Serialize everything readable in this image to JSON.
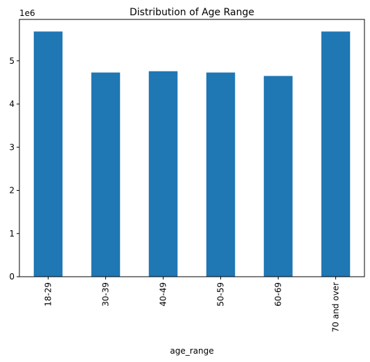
{
  "chart_data": {
    "type": "bar",
    "title": "Distribution of Age Range",
    "xlabel": "age_range",
    "ylabel": "",
    "scale_label": "1e6",
    "categories": [
      "18-29",
      "30-39",
      "40-49",
      "50-59",
      "60-69",
      "70 and over"
    ],
    "values": [
      5680000,
      4730000,
      4760000,
      4730000,
      4650000,
      5680000
    ],
    "ylim": [
      0,
      5960000
    ],
    "yticks": [
      0,
      1000000,
      2000000,
      3000000,
      4000000,
      5000000
    ],
    "ytick_labels": [
      "0",
      "1",
      "2",
      "3",
      "4",
      "5"
    ],
    "bar_color": "#1f77b4",
    "grid": false,
    "legend": "none"
  }
}
